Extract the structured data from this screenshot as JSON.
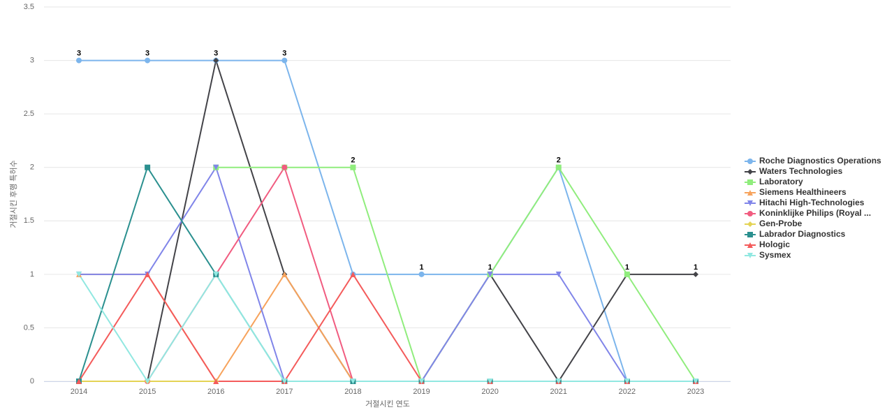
{
  "chart_data": {
    "type": "line",
    "x_label": "거절시킨 연도",
    "y_label": "거절시킨 후행 특허수",
    "categories": [
      "2014",
      "2015",
      "2016",
      "2017",
      "2018",
      "2019",
      "2020",
      "2021",
      "2022",
      "2023"
    ],
    "ylim": [
      0,
      3.5
    ],
    "yticks": [
      0,
      0.5,
      1,
      1.5,
      2,
      2.5,
      3,
      3.5
    ],
    "grid": true,
    "legend": "right",
    "series": [
      {
        "name": "Roche Diagnostics Operations",
        "color": "#7cb5ec",
        "values": [
          3,
          3,
          3,
          3,
          1,
          1,
          1,
          2,
          0,
          0
        ]
      },
      {
        "name": "Waters Technologies",
        "color": "#434348",
        "values": [
          0,
          0,
          3,
          1,
          0,
          0,
          1,
          0,
          1,
          1
        ]
      },
      {
        "name": "Laboratory",
        "color": "#90ed7d",
        "values": [
          null,
          null,
          2,
          2,
          2,
          0,
          1,
          2,
          1,
          0
        ]
      },
      {
        "name": "Siemens Healthineers",
        "color": "#f7a35c",
        "values": [
          1,
          1,
          0,
          1,
          0,
          0,
          0,
          0,
          0,
          0
        ]
      },
      {
        "name": "Hitachi High-Technologies",
        "color": "#8085e9",
        "values": [
          1,
          1,
          2,
          0,
          0,
          0,
          1,
          1,
          0,
          0
        ]
      },
      {
        "name": "Koninklijke Philips (Royal ...",
        "color": "#f15c80",
        "values": [
          0,
          0,
          1,
          2,
          0,
          0,
          0,
          0,
          0,
          0
        ]
      },
      {
        "name": "Gen-Probe",
        "color": "#e4d354",
        "values": [
          0,
          0,
          0,
          0,
          0,
          0,
          0,
          0,
          0,
          0
        ]
      },
      {
        "name": "Labrador Diagnostics",
        "color": "#2b908f",
        "values": [
          0,
          2,
          1,
          0,
          0,
          0,
          0,
          0,
          0,
          0
        ]
      },
      {
        "name": "Hologic",
        "color": "#f45b5b",
        "values": [
          0,
          1,
          0,
          0,
          1,
          0,
          0,
          0,
          0,
          0
        ]
      },
      {
        "name": "Sysmex",
        "color": "#91e8e1",
        "values": [
          1,
          0,
          1,
          0,
          0,
          0,
          0,
          0,
          0,
          0
        ]
      }
    ]
  }
}
